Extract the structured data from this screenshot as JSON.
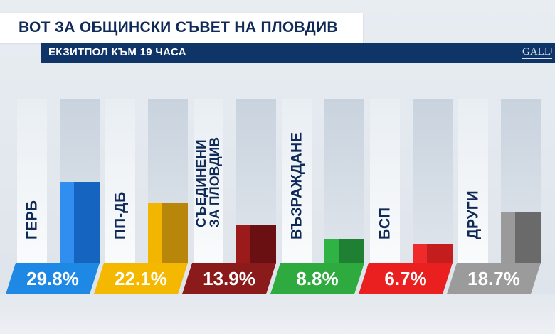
{
  "title": "ВОТ ЗА ОБЩИНСКИ СЪВЕТ НА ПЛОВДИВ",
  "subtitle": "ЕКЗИТПОЛ КЪМ 19 ЧАСА",
  "logo_text": "GALLUP",
  "chart_data": {
    "type": "bar",
    "title": "ВОТ ЗА ОБЩИНСКИ СЪВЕТ НА ПЛОВДИВ",
    "subtitle": "ЕКЗИТПОЛ КЪМ 19 ЧАСА",
    "categories": [
      "ГЕРБ",
      "ПП-ДБ",
      "СЪЕДИНЕНИ ЗА ПЛОВДИВ",
      "ВЪЗРАЖДАНЕ",
      "БСП",
      "ДРУГИ"
    ],
    "values": [
      29.8,
      22.1,
      13.9,
      8.8,
      6.7,
      18.7
    ],
    "value_labels": [
      "29.8%",
      "22.1%",
      "13.9%",
      "8.8%",
      "6.7%",
      "18.7%"
    ],
    "name_lines": [
      [
        "ГЕРБ"
      ],
      [
        "ПП-ДБ"
      ],
      [
        "СЪЕДИНЕНИ",
        "ЗА ПЛОВДИВ"
      ],
      [
        "ВЪЗРАЖДАНЕ"
      ],
      [
        "БСП"
      ],
      [
        "ДРУГИ"
      ]
    ],
    "colors": [
      {
        "light": "#2f8ef0",
        "dark": "#1565c0",
        "box": "#1e88e5"
      },
      {
        "light": "#f2b600",
        "dark": "#b8860b",
        "box": "#f5b800"
      },
      {
        "light": "#9b1b1b",
        "dark": "#6a0f12",
        "box": "#8b1a1a"
      },
      {
        "light": "#2fb344",
        "dark": "#1f7f32",
        "box": "#2eaa3e"
      },
      {
        "light": "#ef2a2a",
        "dark": "#c31d1d",
        "box": "#ea1f1f"
      },
      {
        "light": "#9a9a9a",
        "dark": "#6a6a6a",
        "box": "#9b9b9b"
      }
    ],
    "ylim": [
      0,
      60
    ],
    "grid": false,
    "legend": "none"
  }
}
